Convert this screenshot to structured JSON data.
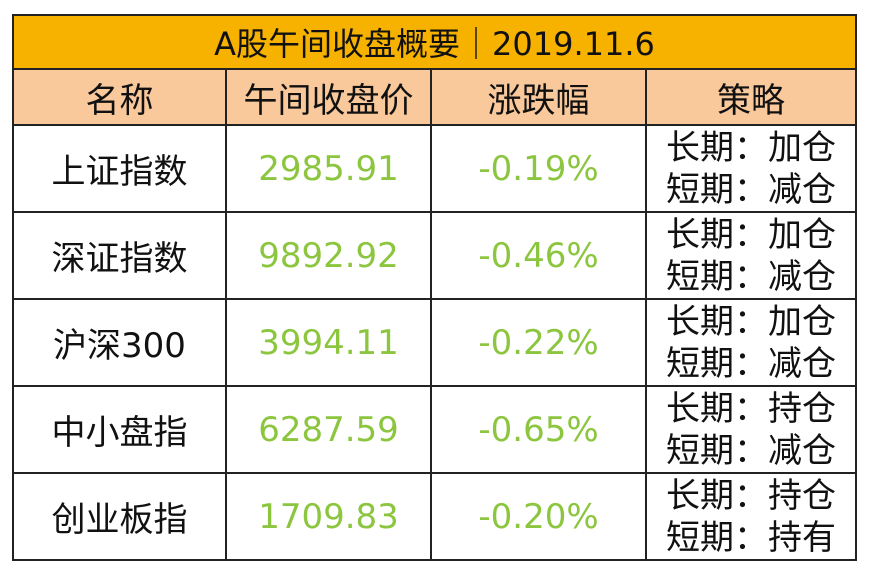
{
  "header": {
    "title": "A股午间收盘概要｜2019.11.6"
  },
  "table": {
    "columns": [
      "名称",
      "午间收盘价",
      "涨跌幅",
      "策略"
    ],
    "rows": [
      [
        "上证指数",
        "2985.91",
        "-0.19%",
        "长期：加仓",
        "短期：减仓"
      ],
      [
        "深证指数",
        "9892.92",
        "-0.46%",
        "长期：加仓",
        "短期：减仓"
      ],
      [
        "沪深300",
        "3994.11",
        "-0.22%",
        "长期：加仓",
        "短期：减仓"
      ],
      [
        "中小盘指",
        "6287.59",
        "-0.65%",
        "长期：持仓",
        "短期：减仓"
      ],
      [
        "创业板指",
        "1709.83",
        "-0.20%",
        "长期：持仓",
        "短期：持有"
      ]
    ]
  }
}
